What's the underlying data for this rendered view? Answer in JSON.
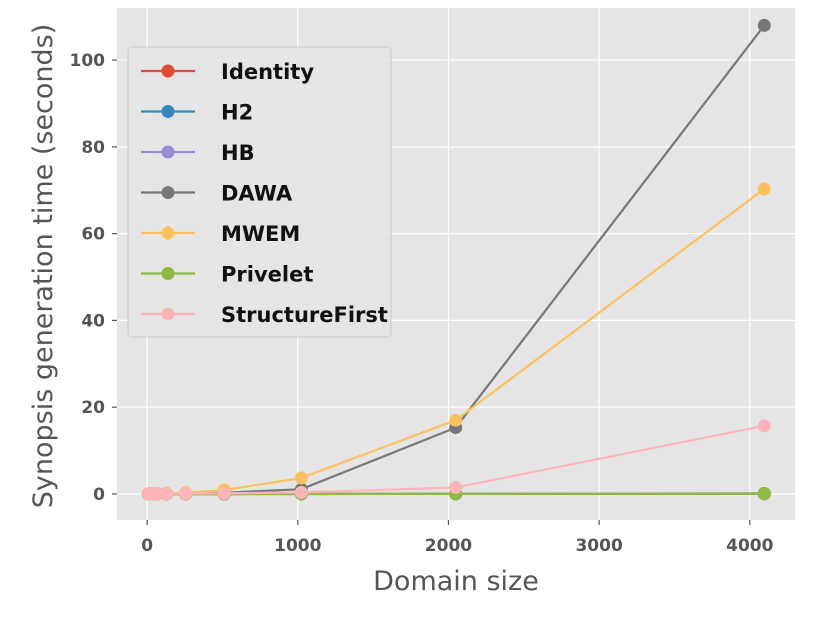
{
  "chart_data": {
    "type": "line",
    "title": "",
    "xlabel": "Domain size",
    "ylabel": "Synopsis generation time (seconds)",
    "xlim": [
      -200,
      4300
    ],
    "ylim": [
      -6,
      112
    ],
    "xticks": [
      0,
      1000,
      2000,
      3000,
      4000
    ],
    "yticks": [
      0,
      20,
      40,
      60,
      80,
      100
    ],
    "x": [
      8,
      16,
      32,
      64,
      128,
      256,
      512,
      1024,
      2048,
      4096
    ],
    "grid": true,
    "legend_position": "top-left",
    "series": [
      {
        "name": "Identity",
        "color": "#E24A33",
        "values": [
          0,
          0,
          0,
          0,
          0,
          0,
          0,
          0,
          0.02,
          0.05
        ]
      },
      {
        "name": "H2",
        "color": "#348ABD",
        "values": [
          0,
          0,
          0,
          0,
          0,
          0,
          0,
          0.01,
          0.05,
          0.1
        ]
      },
      {
        "name": "HB",
        "color": "#988ED5",
        "values": [
          0,
          0,
          0,
          0,
          0,
          0,
          0,
          0.01,
          0.05,
          0.1
        ]
      },
      {
        "name": "DAWA",
        "color": "#777777",
        "values": [
          0.02,
          0.03,
          0.05,
          0.08,
          0.1,
          0.15,
          0.3,
          1.1,
          15.3,
          108
        ]
      },
      {
        "name": "MWEM",
        "color": "#FBC15E",
        "values": [
          0.03,
          0.05,
          0.08,
          0.1,
          0.2,
          0.3,
          0.9,
          3.7,
          17.0,
          70.3
        ]
      },
      {
        "name": "Privelet",
        "color": "#8EBA42",
        "values": [
          0,
          0,
          0,
          0,
          0,
          0,
          0,
          0.01,
          0.02,
          0.1
        ]
      },
      {
        "name": "StructureFirst",
        "color": "#FFB5B8",
        "values": [
          0.01,
          0.01,
          0.02,
          0.03,
          0.05,
          0.08,
          0.15,
          0.35,
          1.5,
          15.7
        ]
      }
    ]
  }
}
